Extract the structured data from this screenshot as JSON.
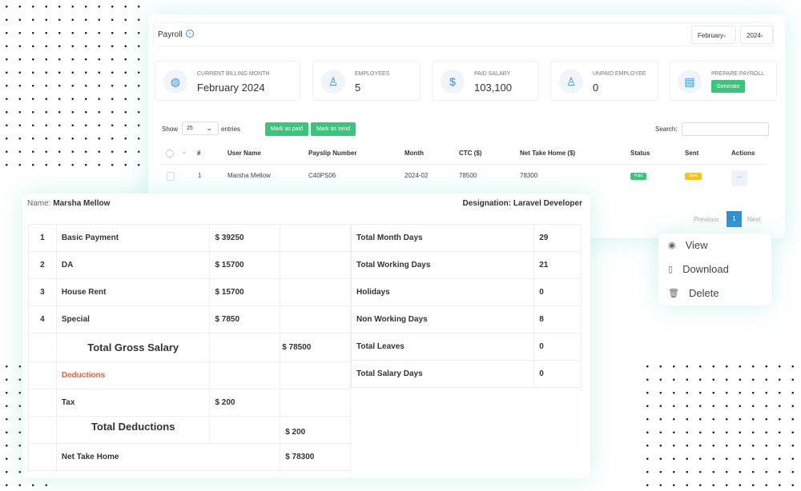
{
  "header": {
    "title": "Payroll",
    "month_select": "February",
    "year_select": "2024"
  },
  "cards": [
    {
      "label": "Current Billing Month",
      "value": "February 2024",
      "icon": "globe-icon"
    },
    {
      "label": "Employees",
      "value": "5",
      "icon": "user-icon"
    },
    {
      "label": "Paid Salary",
      "value": "103,100",
      "icon": "dollar-icon"
    },
    {
      "label": "Unpaid Employee",
      "value": "0",
      "icon": "user-icon"
    },
    {
      "label": "Prepare Payroll",
      "button": "Generate",
      "icon": "document-icon"
    }
  ],
  "controls": {
    "show": "Show",
    "entries_value": "25",
    "entries": "entries",
    "mark_paid": "Mark as paid",
    "mark_send": "Mark as send",
    "search_label": "Search:",
    "search_value": ""
  },
  "table": {
    "headers": [
      "#",
      "User Name",
      "Payslip Number",
      "Month",
      "CTC ($)",
      "Net Take Home ($)",
      "Status",
      "Sent",
      "Actions"
    ],
    "rows": [
      {
        "no": "1",
        "user": "Marsha Mellow",
        "payslip": "C40PS06",
        "month": "2024-02",
        "ctc": "78500",
        "net": "78300",
        "status": "Paid",
        "sent": "Sent",
        "actions": "..."
      }
    ]
  },
  "pagination": {
    "previous": "Previous",
    "page": "1",
    "next": "Next"
  },
  "menu": {
    "view": "View",
    "download": "Download",
    "delete": "Delete"
  },
  "payslip": {
    "name_label": "Name:",
    "name": "Marsha Mellow",
    "designation": "Designation: Laravel Developer",
    "earnings": [
      {
        "no": "1",
        "label": "Basic Payment",
        "amount": "$ 39250"
      },
      {
        "no": "2",
        "label": "DA",
        "amount": "$ 15700"
      },
      {
        "no": "3",
        "label": "House Rent",
        "amount": "$ 15700"
      },
      {
        "no": "4",
        "label": "Special",
        "amount": "$ 7850"
      }
    ],
    "gross_label": "Total Gross Salary",
    "gross": "$ 78500",
    "deductions_label": "Deductions",
    "tax_label": "Tax",
    "tax": "$ 200",
    "total_deductions_label": "Total Deductions",
    "total_deductions": "$ 200",
    "net_label": "Net Take Home",
    "net": "$ 78300",
    "days": [
      {
        "label": "Total Month Days",
        "value": "29"
      },
      {
        "label": "Total Working Days",
        "value": "21"
      },
      {
        "label": "Holidays",
        "value": "0"
      },
      {
        "label": "Non Working Days",
        "value": "8"
      },
      {
        "label": "Total Leaves",
        "value": "0"
      },
      {
        "label": "Total Salary Days",
        "value": "0"
      }
    ]
  },
  "colors": {
    "green": "#3cc47c",
    "blue": "#3b8fd8",
    "yellow": "#f7c21e",
    "deductions": "#e8603c"
  }
}
